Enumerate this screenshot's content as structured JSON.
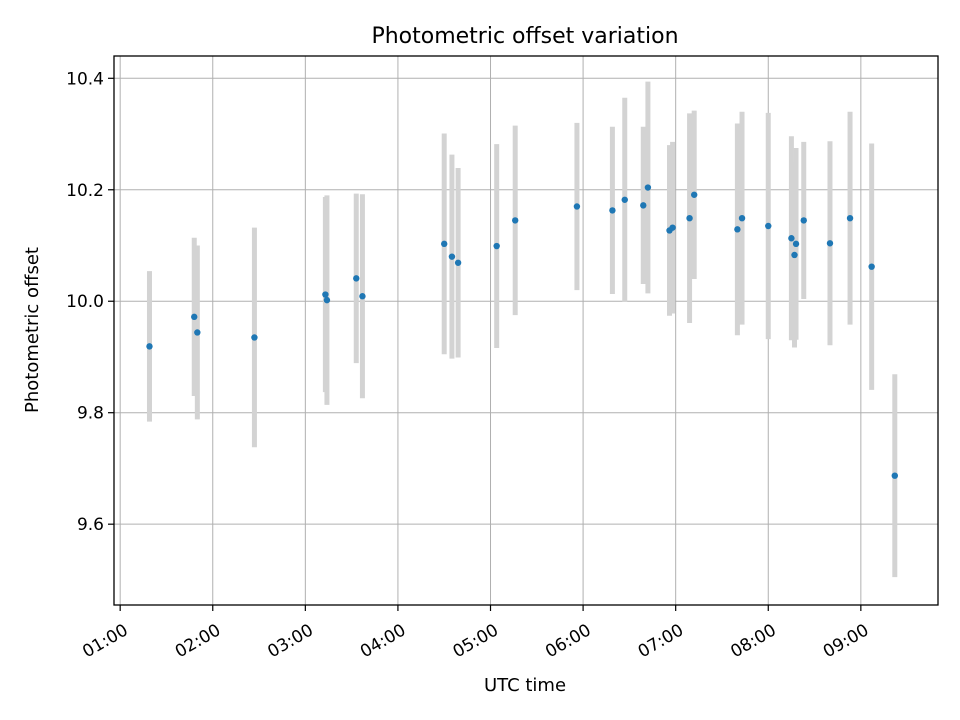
{
  "chart_data": {
    "type": "scatter",
    "title": "Photometric offset variation",
    "xlabel": "UTC time",
    "ylabel": "Photometric offset",
    "x_ticks": [
      "01:00",
      "02:00",
      "03:00",
      "04:00",
      "05:00",
      "06:00",
      "07:00",
      "08:00",
      "09:00"
    ],
    "y_ticks": [
      "9.6",
      "9.8",
      "10.0",
      "10.2",
      "10.4"
    ],
    "xlim": [
      "00:56",
      "09:50"
    ],
    "ylim": [
      9.455,
      10.44
    ],
    "grid": true,
    "colors": {
      "points": "#1f77b4",
      "errorbars": "#d3d3d3",
      "grid": "#b0b0b0"
    },
    "points": [
      {
        "time": "01:19",
        "y": 9.919,
        "err": 0.135
      },
      {
        "time": "01:48",
        "y": 9.972,
        "err": 0.142
      },
      {
        "time": "01:50",
        "y": 9.944,
        "err": 0.156
      },
      {
        "time": "02:27",
        "y": 9.935,
        "err": 0.197
      },
      {
        "time": "03:13",
        "y": 10.012,
        "err": 0.175
      },
      {
        "time": "03:14",
        "y": 10.002,
        "err": 0.188
      },
      {
        "time": "03:33",
        "y": 10.041,
        "err": 0.152
      },
      {
        "time": "03:37",
        "y": 10.009,
        "err": 0.183
      },
      {
        "time": "04:30",
        "y": 10.103,
        "err": 0.198
      },
      {
        "time": "04:35",
        "y": 10.08,
        "err": 0.183
      },
      {
        "time": "04:39",
        "y": 10.069,
        "err": 0.17
      },
      {
        "time": "05:04",
        "y": 10.099,
        "err": 0.183
      },
      {
        "time": "05:16",
        "y": 10.145,
        "err": 0.17
      },
      {
        "time": "05:56",
        "y": 10.17,
        "err": 0.15
      },
      {
        "time": "06:19",
        "y": 10.163,
        "err": 0.15
      },
      {
        "time": "06:27",
        "y": 10.182,
        "err": 0.183
      },
      {
        "time": "06:39",
        "y": 10.172,
        "err": 0.141
      },
      {
        "time": "06:42",
        "y": 10.204,
        "err": 0.19
      },
      {
        "time": "06:56",
        "y": 10.127,
        "err": 0.153
      },
      {
        "time": "06:58",
        "y": 10.132,
        "err": 0.154
      },
      {
        "time": "07:09",
        "y": 10.149,
        "err": 0.188
      },
      {
        "time": "07:12",
        "y": 10.191,
        "err": 0.151
      },
      {
        "time": "07:40",
        "y": 10.129,
        "err": 0.19
      },
      {
        "time": "07:43",
        "y": 10.149,
        "err": 0.191
      },
      {
        "time": "08:00",
        "y": 10.135,
        "err": 0.203
      },
      {
        "time": "08:15",
        "y": 10.113,
        "err": 0.183
      },
      {
        "time": "08:17",
        "y": 10.083,
        "err": 0.166
      },
      {
        "time": "08:18",
        "y": 10.103,
        "err": 0.172
      },
      {
        "time": "08:23",
        "y": 10.145,
        "err": 0.141
      },
      {
        "time": "08:40",
        "y": 10.104,
        "err": 0.183
      },
      {
        "time": "08:53",
        "y": 10.149,
        "err": 0.191
      },
      {
        "time": "09:07",
        "y": 10.062,
        "err": 0.221
      },
      {
        "time": "09:22",
        "y": 9.687,
        "err": 0.182
      }
    ]
  }
}
